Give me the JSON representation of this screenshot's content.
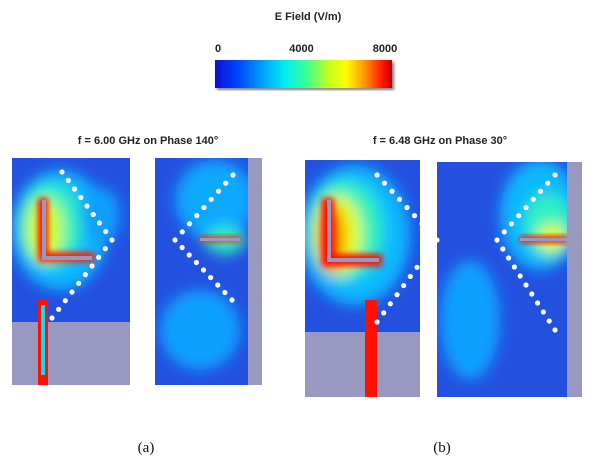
{
  "colorbar": {
    "title": "E Field (V/m)",
    "range": [
      0,
      8000
    ],
    "ticks": [
      0,
      4000,
      8000
    ]
  },
  "panels": [
    {
      "title": "f = 6.00 GHz on Phase 140°",
      "caption": "(a)"
    },
    {
      "title": "f = 6.48 GHz on Phase 30°",
      "caption": "(b)"
    }
  ]
}
